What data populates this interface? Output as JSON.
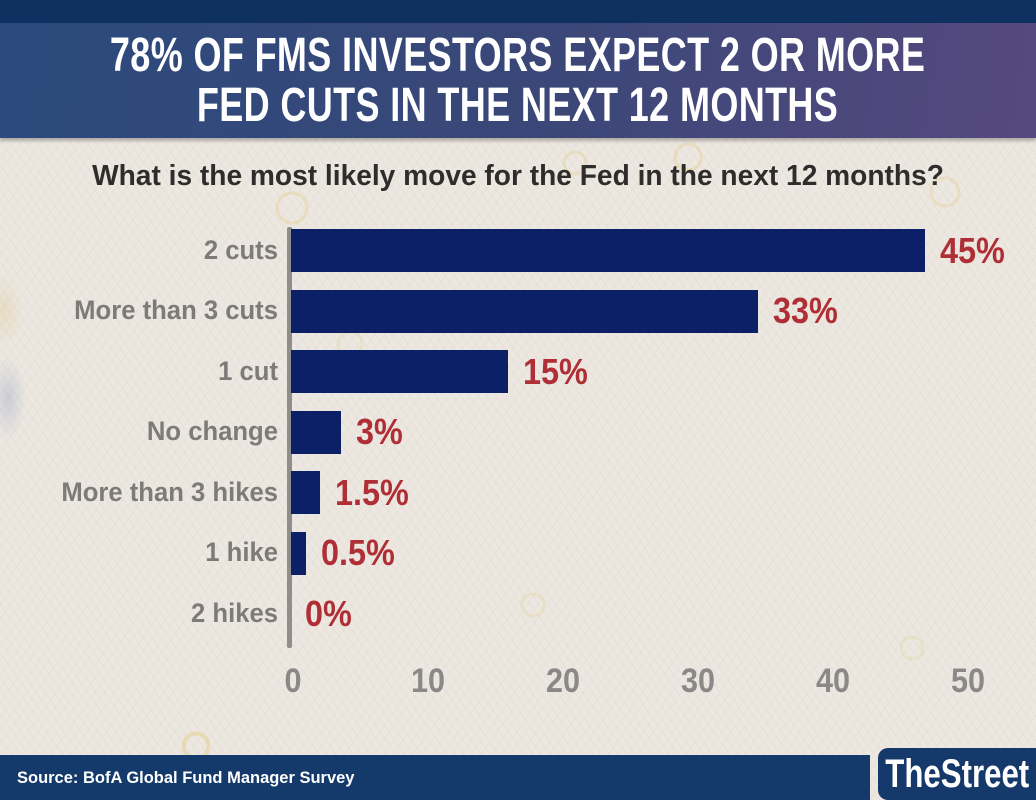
{
  "header": {
    "title_line1": "78% OF FMS INVESTORS EXPECT 2 OR MORE",
    "title_line2": "FED CUTS IN THE NEXT 12 MONTHS"
  },
  "chart_data": {
    "type": "bar",
    "orientation": "horizontal",
    "title": "What is the most likely move for the Fed in the next 12 months?",
    "categories": [
      "2 cuts",
      "More than 3 cuts",
      "1 cut",
      "No change",
      "More than 3 hikes",
      "1 hike",
      "2 hikes"
    ],
    "values": [
      45,
      33,
      15,
      3,
      1.5,
      0.5,
      0
    ],
    "value_labels": [
      "45%",
      "33%",
      "15%",
      "3%",
      "1.5%",
      "0.5%",
      "0%"
    ],
    "x_ticks": [
      0,
      10,
      20,
      30,
      40,
      50
    ],
    "xlim": [
      0,
      50
    ],
    "grid": false,
    "legend": false,
    "bar_color": "#0c2067",
    "value_label_color": "#b02f36",
    "category_label_color": "#7c7b78",
    "tick_label_color": "#8b8987"
  },
  "footer": {
    "source": "Source: BofA Global Fund Manager Survey",
    "brand": "TheStreet"
  },
  "colors": {
    "top_strip": "#0e3161",
    "header_gradient_left": "#2b4a7d",
    "header_gradient_right": "#56497f",
    "background": "#ece7e0",
    "footer_bar": "#143a6b",
    "headline_text": "#ffffff"
  }
}
